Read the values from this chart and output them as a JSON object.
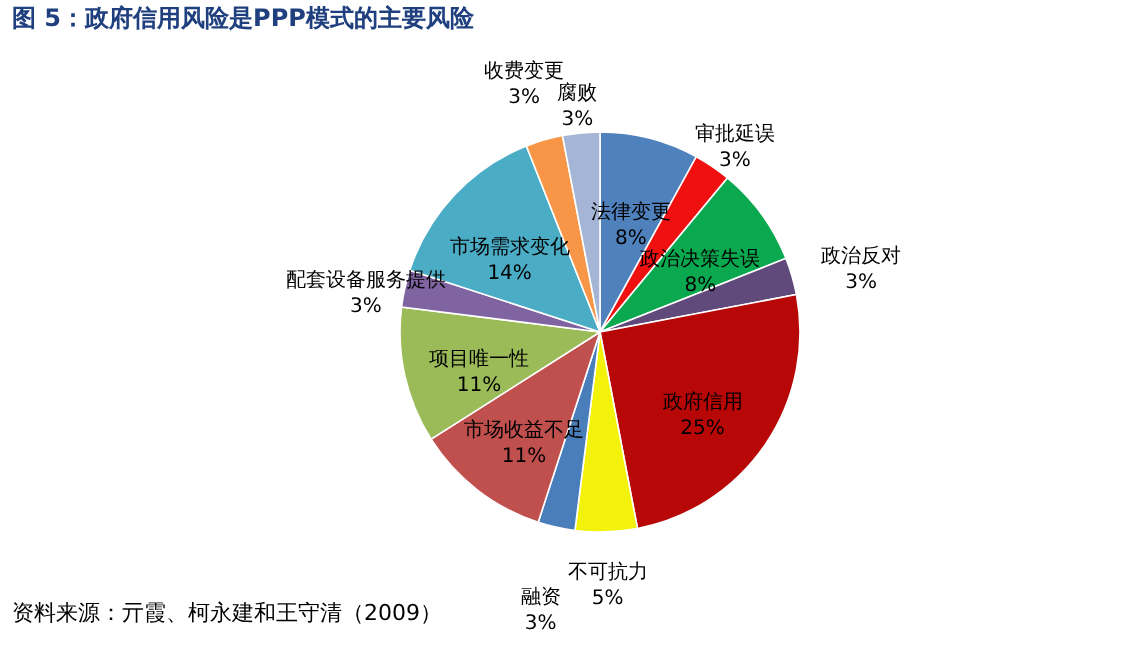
{
  "chart_data": {
    "type": "pie",
    "title": "图 5：政府信用风险是PPP模式的主要风险",
    "annotations": [
      "资料来源：亓霞、柯永建和王守清（2009）"
    ],
    "categories": [
      "法律变更",
      "审批延误",
      "政治决策失误",
      "政治反对",
      "政府信用",
      "不可抗力",
      "融资",
      "市场收益不足",
      "项目唯一性",
      "配套设备服务提供",
      "市场需求变化",
      "收费变更",
      "腐败"
    ],
    "values": [
      8,
      3,
      8,
      3,
      25,
      5,
      3,
      11,
      11,
      3,
      14,
      3,
      3
    ],
    "value_labels": [
      "8%",
      "3%",
      "8%",
      "3%",
      "25%",
      "5%",
      "3%",
      "11%",
      "11%",
      "3%",
      "14%",
      "3%",
      "3%"
    ],
    "colors": [
      "#4f81bd",
      "#f01010",
      "#0aa84f",
      "#604a7b",
      "#b80707",
      "#f2f20a",
      "#4a7ebb",
      "#c0504d",
      "#9bbb59",
      "#8064a2",
      "#4bacc6",
      "#f79646",
      "#a5b5d5"
    ]
  }
}
